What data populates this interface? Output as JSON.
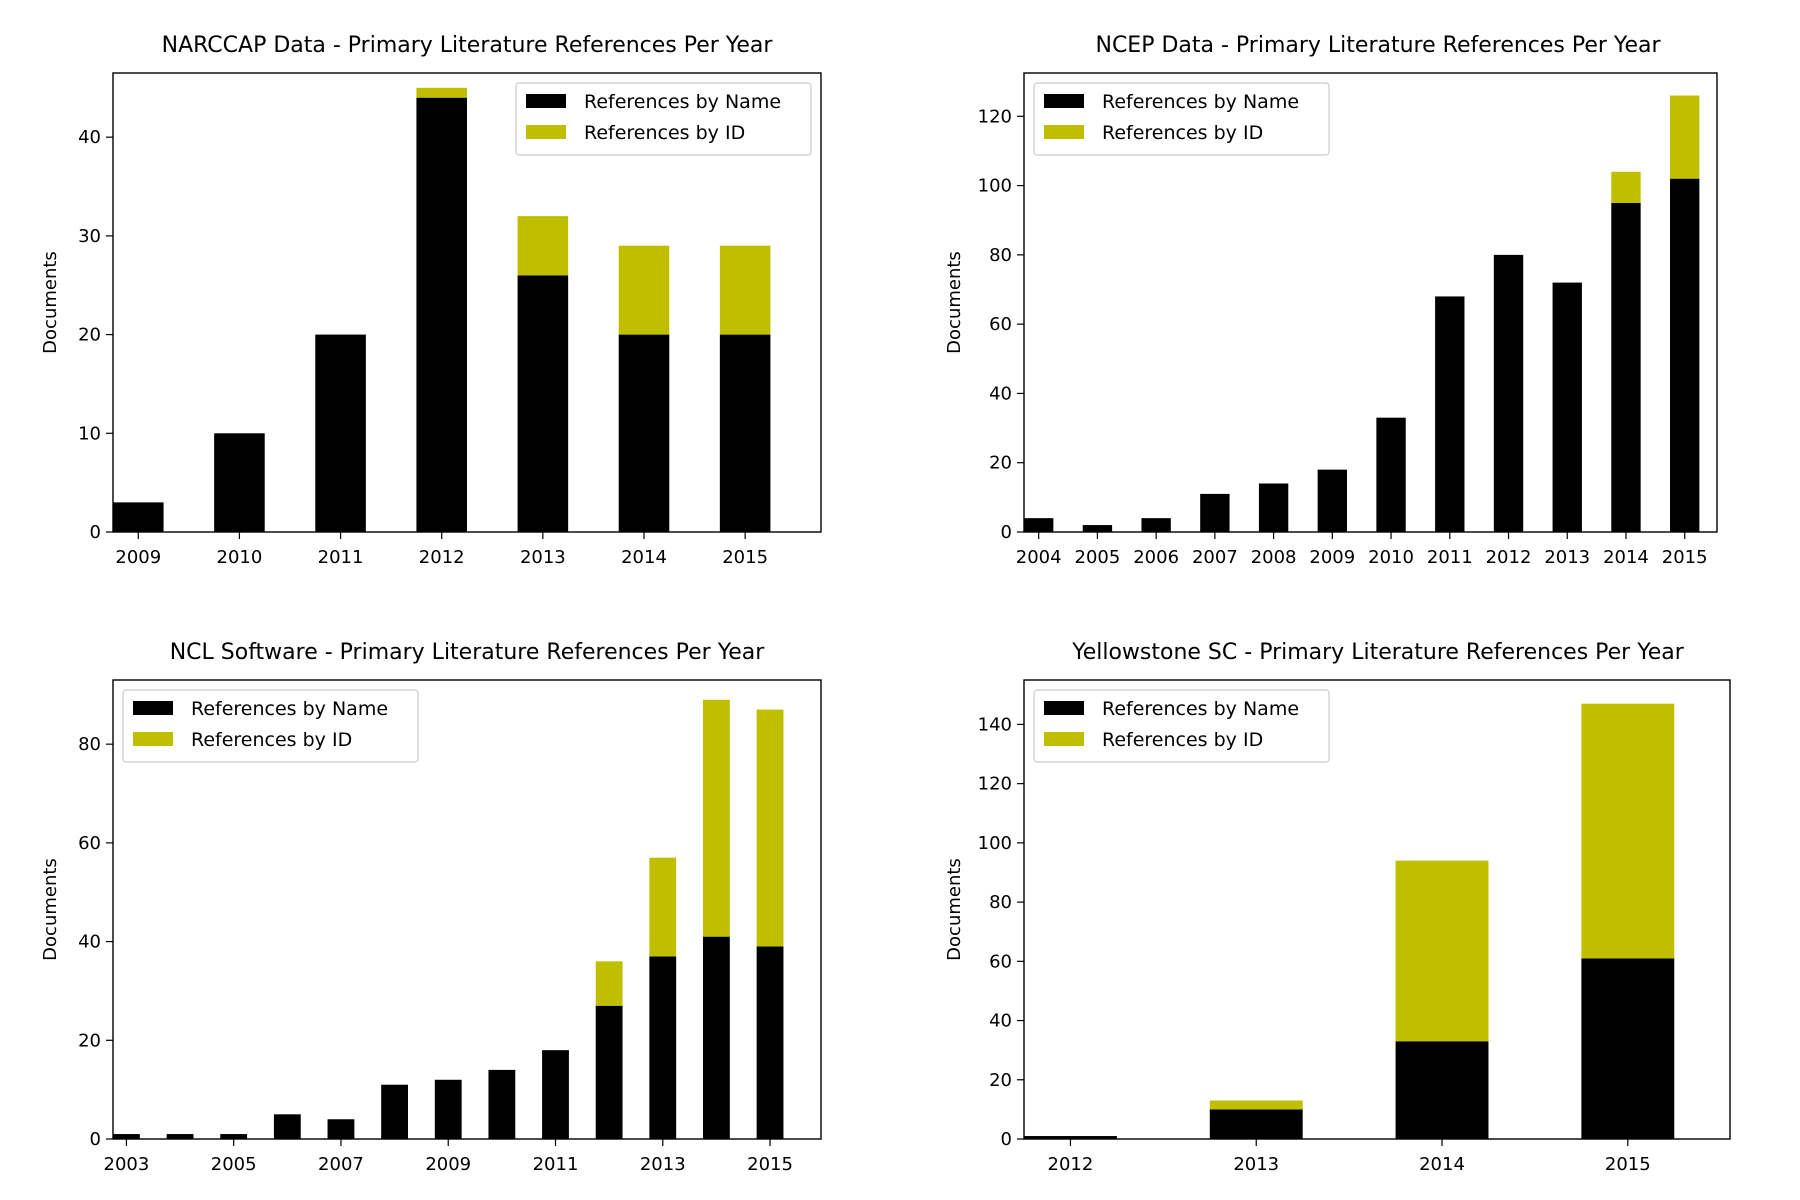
{
  "colors": {
    "name": "#000000",
    "id": "#bfbf00"
  },
  "chart_data": [
    {
      "type": "bar",
      "stacked": true,
      "title": "NARCCAP Data - Primary Literature References Per Year",
      "xlabel": "",
      "ylabel": "Documents",
      "legend_position": "top-right",
      "grid": false,
      "categories": [
        "2009",
        "2010",
        "2011",
        "2012",
        "2013",
        "2014",
        "2015"
      ],
      "xticks": [
        "2009",
        "2010",
        "2011",
        "2012",
        "2013",
        "2014",
        "2015"
      ],
      "ylim": [
        0,
        46.5
      ],
      "yticks": [
        0,
        10,
        20,
        30,
        40
      ],
      "series": [
        {
          "name": "References by Name",
          "values": [
            3,
            10,
            20,
            44,
            26,
            20,
            20
          ]
        },
        {
          "name": "References by ID",
          "values": [
            0,
            0,
            0,
            1,
            6,
            9,
            9
          ]
        }
      ]
    },
    {
      "type": "bar",
      "stacked": true,
      "title": "NCEP Data - Primary Literature References Per Year",
      "xlabel": "",
      "ylabel": "Documents",
      "legend_position": "top-left",
      "grid": false,
      "categories": [
        "2004",
        "2005",
        "2006",
        "2007",
        "2008",
        "2009",
        "2010",
        "2011",
        "2012",
        "2013",
        "2014",
        "2015"
      ],
      "xticks": [
        "2004",
        "2005",
        "2006",
        "2007",
        "2008",
        "2009",
        "2010",
        "2011",
        "2012",
        "2013",
        "2014",
        "2015"
      ],
      "ylim": [
        0,
        132.5
      ],
      "yticks": [
        0,
        20,
        40,
        60,
        80,
        100,
        120
      ],
      "series": [
        {
          "name": "References by Name",
          "values": [
            4,
            2,
            4,
            11,
            14,
            18,
            33,
            68,
            80,
            72,
            95,
            102
          ]
        },
        {
          "name": "References by ID",
          "values": [
            0,
            0,
            0,
            0,
            0,
            0,
            0,
            0,
            0,
            0,
            9,
            24
          ]
        }
      ]
    },
    {
      "type": "bar",
      "stacked": true,
      "title": "NCL Software - Primary Literature References Per Year",
      "xlabel": "",
      "ylabel": "Documents",
      "legend_position": "top-left",
      "grid": false,
      "categories": [
        "2003",
        "2004",
        "2005",
        "2006",
        "2007",
        "2008",
        "2009",
        "2010",
        "2011",
        "2012",
        "2013",
        "2014",
        "2015"
      ],
      "xticks": [
        "2003",
        "2005",
        "2007",
        "2009",
        "2011",
        "2013",
        "2015"
      ],
      "ylim": [
        0,
        93
      ],
      "yticks": [
        0,
        20,
        40,
        60,
        80
      ],
      "series": [
        {
          "name": "References by Name",
          "values": [
            1,
            1,
            1,
            5,
            4,
            11,
            12,
            14,
            18,
            27,
            37,
            41,
            39
          ]
        },
        {
          "name": "References by ID",
          "values": [
            0,
            0,
            0,
            0,
            0,
            0,
            0,
            0,
            0,
            9,
            20,
            48,
            48
          ]
        }
      ]
    },
    {
      "type": "bar",
      "stacked": true,
      "title": "Yellowstone SC - Primary Literature References Per Year",
      "xlabel": "",
      "ylabel": "Documents",
      "legend_position": "top-left",
      "grid": false,
      "categories": [
        "2012",
        "2013",
        "2014",
        "2015"
      ],
      "xticks": [
        "2012",
        "2013",
        "2014",
        "2015"
      ],
      "ylim": [
        0,
        155
      ],
      "yticks": [
        0,
        20,
        40,
        60,
        80,
        100,
        120,
        140
      ],
      "series": [
        {
          "name": "References by Name",
          "values": [
            1,
            10,
            33,
            61
          ]
        },
        {
          "name": "References by ID",
          "values": [
            0,
            3,
            61,
            86
          ]
        }
      ]
    }
  ]
}
